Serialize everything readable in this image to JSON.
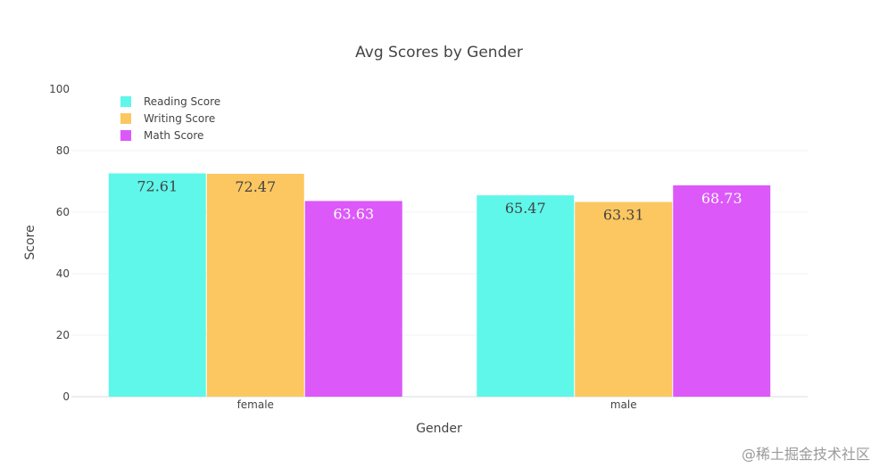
{
  "chart_data": {
    "type": "bar",
    "title": "Avg Scores by Gender",
    "xlabel": "Gender",
    "ylabel": "Score",
    "categories": [
      "female",
      "male"
    ],
    "series": [
      {
        "name": "Reading Score",
        "values": [
          72.61,
          65.47
        ],
        "color": "#5ef7ea",
        "label_color": "#444444"
      },
      {
        "name": "Writing Score",
        "values": [
          72.47,
          63.31
        ],
        "color": "#fcc760",
        "label_color": "#444444"
      },
      {
        "name": "Math Score",
        "values": [
          63.63,
          68.73
        ],
        "color": "#dc58f9",
        "label_color": "#ffffff"
      }
    ],
    "ylim": [
      0,
      100
    ],
    "yticks": [
      0,
      20,
      40,
      60,
      80,
      100
    ],
    "grid": true,
    "legend": "top-left"
  },
  "watermark": "@稀土掘金技术社区"
}
